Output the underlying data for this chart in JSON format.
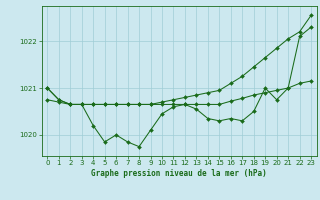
{
  "title": "Graphe pression niveau de la mer (hPa)",
  "x_ticks": [
    0,
    1,
    2,
    3,
    4,
    5,
    6,
    7,
    8,
    9,
    10,
    11,
    12,
    13,
    14,
    15,
    16,
    17,
    18,
    19,
    20,
    21,
    22,
    23
  ],
  "xlim": [
    -0.5,
    23.5
  ],
  "ylim": [
    1019.55,
    1022.75
  ],
  "yticks": [
    1020,
    1021,
    1022
  ],
  "background_color": "#cce8ef",
  "grid_color": "#a0cdd6",
  "line_color": "#1a6b1a",
  "s1_y": [
    1021.0,
    1020.75,
    1020.65,
    1020.65,
    1020.2,
    1019.85,
    1020.0,
    1019.85,
    1019.75,
    1020.1,
    1020.45,
    1020.6,
    1020.65,
    1020.55,
    1020.35,
    1020.3,
    1020.35,
    1020.3,
    1020.5,
    1021.0,
    1020.75,
    1021.0,
    1022.1,
    1022.3
  ],
  "s2_y": [
    1020.75,
    1020.7,
    1020.65,
    1020.65,
    1020.65,
    1020.65,
    1020.65,
    1020.65,
    1020.65,
    1020.65,
    1020.65,
    1020.65,
    1020.65,
    1020.65,
    1020.65,
    1020.65,
    1020.72,
    1020.78,
    1020.85,
    1020.9,
    1020.95,
    1021.0,
    1021.1,
    1021.15
  ],
  "s3_y": [
    1021.0,
    1020.75,
    1020.65,
    1020.65,
    1020.65,
    1020.65,
    1020.65,
    1020.65,
    1020.65,
    1020.65,
    1020.7,
    1020.75,
    1020.8,
    1020.85,
    1020.9,
    1020.95,
    1021.1,
    1021.25,
    1021.45,
    1021.65,
    1021.85,
    1022.05,
    1022.2,
    1022.55
  ]
}
